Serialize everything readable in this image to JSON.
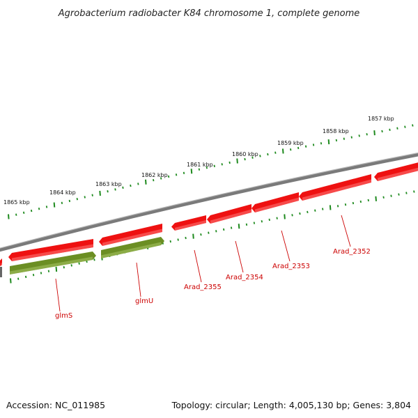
{
  "title": "Agrobacterium radiobacter K84 chromosome 1, complete genome",
  "footer": {
    "accession": "Accession: NC_011985",
    "summary": "Topology: circular; Length: 4,005,130 bp; Genes: 3,804"
  },
  "colors": {
    "cds": "#ee1111",
    "rna": "#6b8e23",
    "backbone": "#7a7a7a",
    "ruler": "#1e8a1e",
    "label": "#cc0000"
  },
  "ruler_labels": [
    "1865 kbp",
    "1864 kbp",
    "1863 kbp",
    "1862 kbp",
    "1861 kbp",
    "1860 kbp",
    "1859 kbp",
    "1858 kbp",
    "1857 kbp"
  ],
  "genes": [
    {
      "name": "glmS",
      "color": "rna"
    },
    {
      "name": "glmU",
      "color": "rna"
    },
    {
      "name": "Arad_2355",
      "color": "cds"
    },
    {
      "name": "Arad_2354",
      "color": "cds"
    },
    {
      "name": "Arad_2353",
      "color": "cds"
    },
    {
      "name": "Arad_2352",
      "color": "cds"
    }
  ]
}
